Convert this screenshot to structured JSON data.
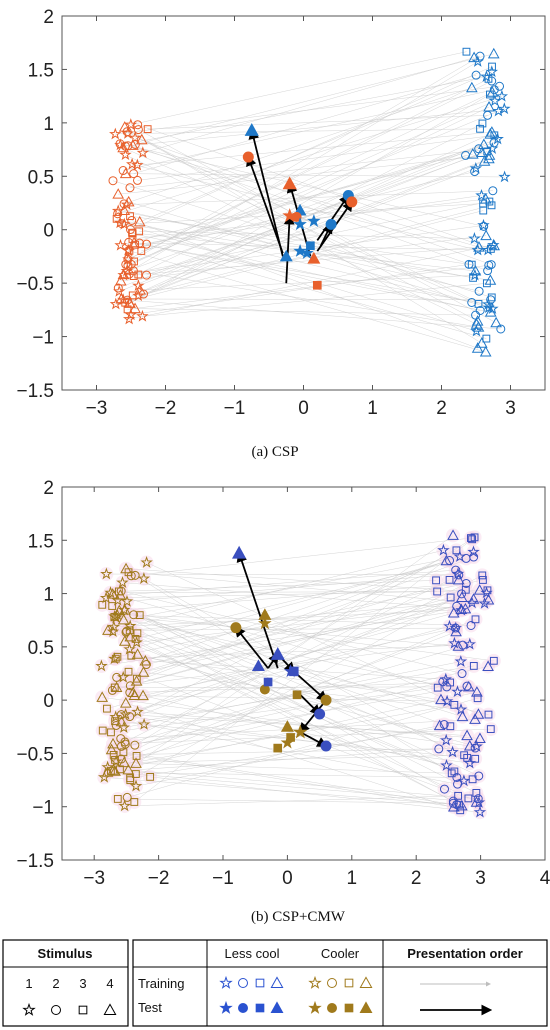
{
  "colors": {
    "less_cool": "#1f78c8",
    "less_cool_b": "#3a4fbf",
    "cooler_a": "#e8602c",
    "cooler_b": "#a07a1c",
    "axis": "#444444",
    "trajectory": "#cfcfcf",
    "cmw_halo": "#f6d3e6"
  },
  "stimulus_markers": {
    "1": "star",
    "2": "circle",
    "3": "square",
    "4": "triangle"
  },
  "chart_data": [
    {
      "type": "scatter",
      "caption": "(a) CSP",
      "xlim": [
        -3.5,
        3.5
      ],
      "ylim": [
        -1.5,
        2
      ],
      "xticks": [
        -3,
        -2,
        -1,
        0,
        1,
        2,
        3
      ],
      "yticks": [
        -1.5,
        -1,
        -0.5,
        0,
        0.5,
        1,
        1.5,
        2
      ],
      "xtick_labels": [
        "−3",
        "−2",
        "−1",
        "0",
        "1",
        "2",
        "3"
      ],
      "ytick_labels": [
        "−1.5",
        "−1",
        "−0.5",
        "0",
        "0.5",
        "1",
        "1.5",
        "2"
      ],
      "training": {
        "cooler": {
          "x_center": -2.5,
          "x_spread": 0.35,
          "y_range": [
            -0.85,
            1.0
          ],
          "n": 90
        },
        "less_cool": {
          "x_center": 2.65,
          "x_spread": 0.35,
          "y_range": [
            -1.15,
            1.67
          ],
          "n": 90
        }
      },
      "test_arrows": [
        {
          "from": [
            -0.3,
            -0.25
          ],
          "to": [
            -0.75,
            0.93
          ],
          "group": "less_cool",
          "marker": "triangle"
        },
        {
          "from": [
            -0.3,
            -0.22
          ],
          "to": [
            -0.8,
            0.68
          ],
          "group": "cooler",
          "marker": "circle"
        },
        {
          "from": [
            -0.25,
            -0.5
          ],
          "to": [
            -0.2,
            0.13
          ],
          "group": "cooler",
          "marker": "star"
        },
        {
          "from": [
            0.1,
            -0.25
          ],
          "to": [
            -0.2,
            0.43
          ],
          "group": "cooler",
          "marker": "triangle"
        },
        {
          "from": [
            0.2,
            -0.1
          ],
          "to": [
            0.65,
            0.32
          ],
          "group": "less_cool",
          "marker": "circle"
        },
        {
          "from": [
            0.2,
            -0.2
          ],
          "to": [
            0.7,
            0.26
          ],
          "group": "cooler",
          "marker": "circle"
        },
        {
          "from": [
            0.25,
            -0.15
          ],
          "to": [
            0.4,
            0.05
          ],
          "group": "less_cool",
          "marker": "circle"
        }
      ],
      "test_points": [
        {
          "x": -0.25,
          "y": -0.25,
          "group": "less_cool",
          "marker": "triangle"
        },
        {
          "x": -0.05,
          "y": 0.18,
          "group": "less_cool",
          "marker": "triangle"
        },
        {
          "x": -0.1,
          "y": 0.12,
          "group": "cooler",
          "marker": "circle"
        },
        {
          "x": 0.1,
          "y": -0.15,
          "group": "less_cool",
          "marker": "square"
        },
        {
          "x": 0.05,
          "y": -0.22,
          "group": "less_cool",
          "marker": "star"
        },
        {
          "x": 0.15,
          "y": 0.08,
          "group": "less_cool",
          "marker": "star"
        },
        {
          "x": 0.15,
          "y": -0.27,
          "group": "cooler",
          "marker": "triangle"
        },
        {
          "x": 0.2,
          "y": -0.52,
          "group": "cooler",
          "marker": "square"
        },
        {
          "x": -0.05,
          "y": -0.2,
          "group": "less_cool",
          "marker": "star"
        },
        {
          "x": -0.05,
          "y": 0.05,
          "group": "less_cool",
          "marker": "star"
        }
      ]
    },
    {
      "type": "scatter",
      "caption": "(b) CSP+CMW",
      "xlim": [
        -3.5,
        4
      ],
      "ylim": [
        -1.5,
        2
      ],
      "xticks": [
        -3,
        -2,
        -1,
        0,
        1,
        2,
        3,
        4
      ],
      "yticks": [
        -1.5,
        -1,
        -0.5,
        0,
        0.5,
        1,
        1.5,
        2
      ],
      "xtick_labels": [
        "−3",
        "−2",
        "−1",
        "0",
        "1",
        "2",
        "3",
        "4"
      ],
      "ytick_labels": [
        "−1.5",
        "−1",
        "−0.5",
        "0",
        "0.5",
        "1",
        "1.5",
        "2"
      ],
      "training": {
        "cooler": {
          "x_center": -2.5,
          "x_spread": 0.55,
          "y_range": [
            -1.0,
            1.32
          ],
          "n": 110
        },
        "less_cool": {
          "x_center": 2.75,
          "x_spread": 0.6,
          "y_range": [
            -1.07,
            1.55
          ],
          "n": 110
        }
      },
      "test_arrows": [
        {
          "from": [
            -0.15,
            0.3
          ],
          "to": [
            -0.75,
            1.38
          ],
          "group": "less_cool",
          "marker": "triangle"
        },
        {
          "from": [
            -0.3,
            0.3
          ],
          "to": [
            -0.8,
            0.68
          ],
          "group": "cooler",
          "marker": "circle"
        },
        {
          "from": [
            -0.3,
            0.3
          ],
          "to": [
            -0.15,
            0.43
          ],
          "group": "less_cool",
          "marker": "triangle"
        },
        {
          "from": [
            -0.15,
            0.43
          ],
          "to": [
            0.1,
            0.27
          ],
          "group": "less_cool",
          "marker": "square"
        },
        {
          "from": [
            0.1,
            0.27
          ],
          "to": [
            0.6,
            0.0
          ],
          "group": "cooler",
          "marker": "circle"
        },
        {
          "from": [
            0.6,
            0.0
          ],
          "to": [
            0.2,
            -0.3
          ],
          "group": "cooler",
          "marker": "star"
        },
        {
          "from": [
            0.2,
            -0.3
          ],
          "to": [
            0.6,
            -0.43
          ],
          "group": "less_cool",
          "marker": "circle"
        },
        {
          "from": [
            0.2,
            0.05
          ],
          "to": [
            0.5,
            -0.13
          ],
          "group": "less_cool",
          "marker": "circle"
        }
      ],
      "test_points": [
        {
          "x": -0.35,
          "y": 0.8,
          "group": "cooler",
          "marker": "triangle"
        },
        {
          "x": -0.35,
          "y": 0.72,
          "group": "cooler",
          "marker": "star"
        },
        {
          "x": -0.45,
          "y": 0.32,
          "group": "less_cool",
          "marker": "triangle"
        },
        {
          "x": -0.35,
          "y": 0.1,
          "group": "cooler",
          "marker": "circle"
        },
        {
          "x": -0.3,
          "y": 0.17,
          "group": "less_cool",
          "marker": "square"
        },
        {
          "x": 0.05,
          "y": 0.27,
          "group": "less_cool",
          "marker": "star"
        },
        {
          "x": 0.15,
          "y": 0.05,
          "group": "cooler",
          "marker": "square"
        },
        {
          "x": 0.0,
          "y": -0.25,
          "group": "cooler",
          "marker": "triangle"
        },
        {
          "x": 0.05,
          "y": -0.35,
          "group": "cooler",
          "marker": "square"
        },
        {
          "x": -0.15,
          "y": -0.45,
          "group": "cooler",
          "marker": "square"
        },
        {
          "x": 0.0,
          "y": -0.4,
          "group": "cooler",
          "marker": "star"
        }
      ]
    }
  ],
  "legend": {
    "stimulus": {
      "title": "Stimulus",
      "numbers": [
        "1",
        "2",
        "3",
        "4"
      ]
    },
    "groups": {
      "less_cool": "Less cool",
      "cooler": "Cooler",
      "training": "Training",
      "test": "Test"
    },
    "presentation": {
      "title": "Presentation order"
    }
  }
}
